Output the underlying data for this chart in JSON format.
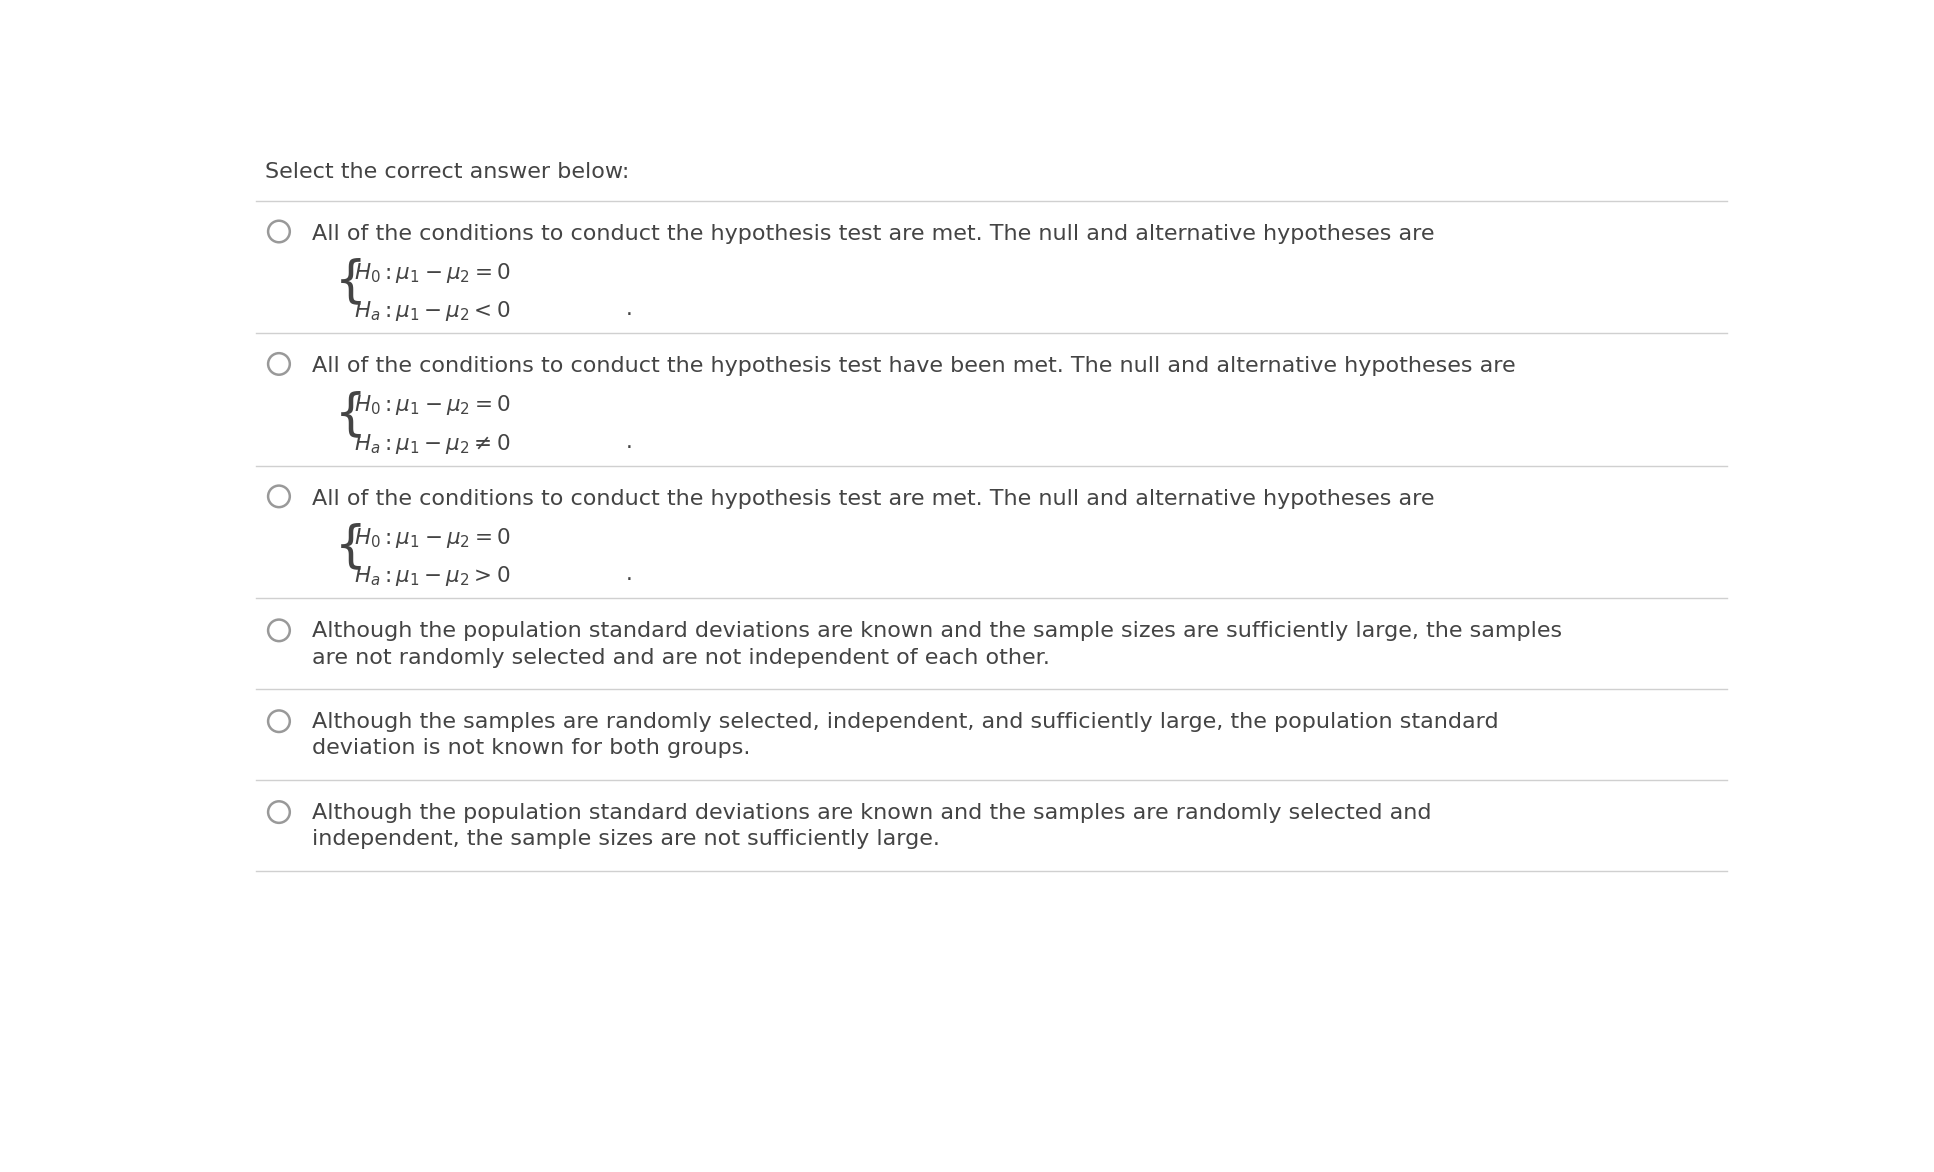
{
  "title": "Select the correct answer below:",
  "bg_color": "#ffffff",
  "border_color": "#d0d0d0",
  "text_color": "#444444",
  "circle_color": "#999999",
  "options": [
    {
      "main_text": "All of the conditions to conduct the hypothesis test are met. The null and alternative hypotheses are",
      "has_math": true,
      "math_line1": "H_0 : \\mu_1 - \\mu_2 = 0",
      "math_line2": "H_a : \\mu_1 - \\mu_2 < 0",
      "period": "."
    },
    {
      "main_text": "All of the conditions to conduct the hypothesis test have been met. The null and alternative hypotheses are",
      "has_math": true,
      "math_line1": "H_0 : \\mu_1 - \\mu_2 = 0",
      "math_line2": "H_a : \\mu_1 - \\mu_2 \\neq 0",
      "period": "."
    },
    {
      "main_text": "All of the conditions to conduct the hypothesis test are met. The null and alternative hypotheses are",
      "has_math": true,
      "math_line1": "H_0 : \\mu_1 - \\mu_2 = 0",
      "math_line2": "H_a : \\mu_1 - \\mu_2 > 0",
      "period": "."
    },
    {
      "main_text": "Although the population standard deviations are known and the sample sizes are sufficiently large, the samples\nare not randomly selected and are not independent of each other.",
      "has_math": false,
      "math_line1": "",
      "math_line2": "",
      "period": ""
    },
    {
      "main_text": "Although the samples are randomly selected, independent, and sufficiently large, the population standard\ndeviation is not known for both groups.",
      "has_math": false,
      "math_line1": "",
      "math_line2": "",
      "period": ""
    },
    {
      "main_text": "Although the population standard deviations are known and the samples are randomly selected and\nindependent, the sample sizes are not sufficiently large.",
      "has_math": false,
      "math_line1": "",
      "math_line2": "",
      "period": ""
    }
  ],
  "title_fontsize": 16,
  "option_fontsize": 16,
  "math_fontsize": 15.5,
  "brace_fontsize": 36
}
